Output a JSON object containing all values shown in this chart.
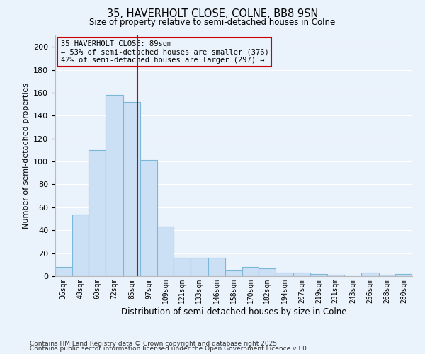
{
  "title": "35, HAVERHOLT CLOSE, COLNE, BB8 9SN",
  "subtitle": "Size of property relative to semi-detached houses in Colne",
  "xlabel": "Distribution of semi-detached houses by size in Colne",
  "ylabel": "Number of semi-detached properties",
  "bin_labels": [
    "36sqm",
    "48sqm",
    "60sqm",
    "72sqm",
    "85sqm",
    "97sqm",
    "109sqm",
    "121sqm",
    "133sqm",
    "146sqm",
    "158sqm",
    "170sqm",
    "182sqm",
    "194sqm",
    "207sqm",
    "219sqm",
    "231sqm",
    "243sqm",
    "256sqm",
    "268sqm",
    "280sqm"
  ],
  "bin_edges": [
    30,
    42,
    54,
    66,
    79,
    91,
    103,
    115,
    127,
    139.5,
    152,
    164,
    176,
    188,
    200.5,
    213,
    225,
    237,
    249.5,
    262,
    274,
    286
  ],
  "counts": [
    8,
    54,
    110,
    158,
    152,
    101,
    43,
    16,
    16,
    16,
    5,
    8,
    7,
    3,
    3,
    2,
    1,
    0,
    3,
    1,
    2
  ],
  "bar_facecolor": "#cce0f5",
  "bar_edgecolor": "#7ab8d9",
  "vline_x": 89,
  "vline_color": "#cc0000",
  "annotation_box_edgecolor": "#cc0000",
  "annotation_lines": [
    "35 HAVERHOLT CLOSE: 89sqm",
    "← 53% of semi-detached houses are smaller (376)",
    "42% of semi-detached houses are larger (297) →"
  ],
  "ylim": [
    0,
    210
  ],
  "yticks": [
    0,
    20,
    40,
    60,
    80,
    100,
    120,
    140,
    160,
    180,
    200
  ],
  "bg_color": "#eaf2fb",
  "grid_color": "#ffffff",
  "footnote1": "Contains HM Land Registry data © Crown copyright and database right 2025.",
  "footnote2": "Contains public sector information licensed under the Open Government Licence v3.0."
}
